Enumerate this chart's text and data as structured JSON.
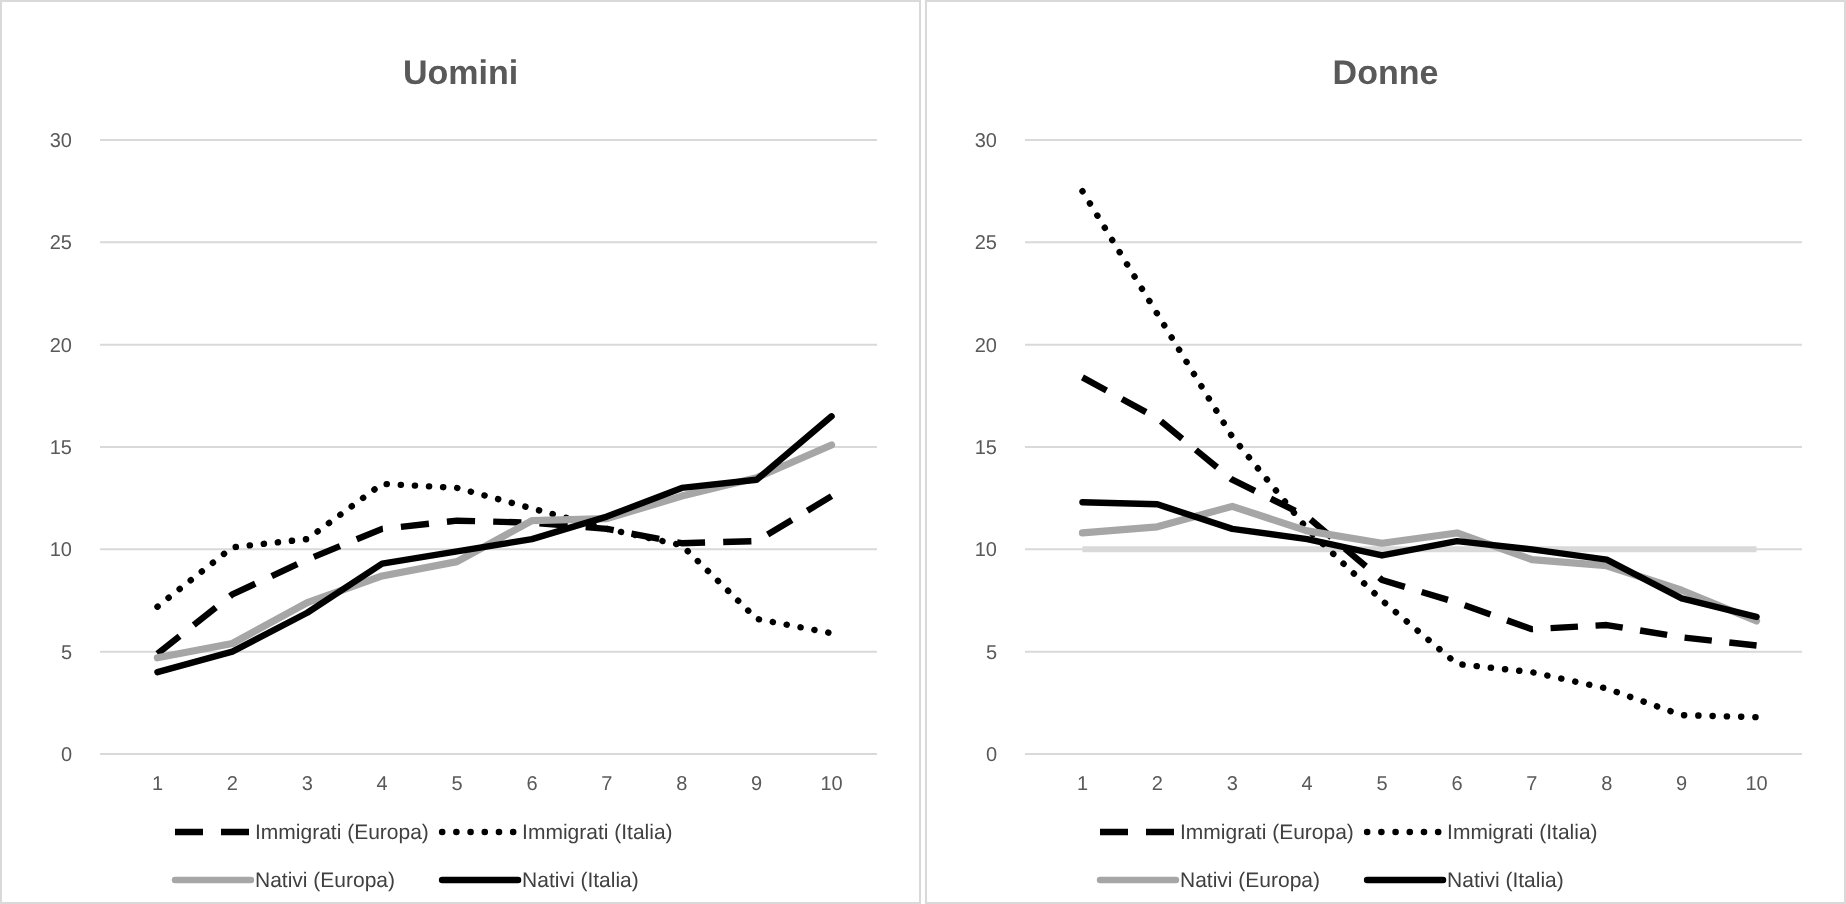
{
  "chart_data": [
    {
      "type": "line",
      "title": "Uomini",
      "categories": [
        "1",
        "2",
        "3",
        "4",
        "5",
        "6",
        "7",
        "8",
        "9",
        "10"
      ],
      "ylim": [
        0,
        30
      ],
      "yticks": [
        0,
        5,
        10,
        15,
        20,
        25,
        30
      ],
      "grid": "y",
      "legend": "bottom",
      "marker": "none",
      "series": [
        {
          "name": "Immigrati (Europa)",
          "color": "#000000",
          "line_style": "dashed",
          "values": [
            4.9,
            7.8,
            9.5,
            11,
            11.4,
            11.3,
            11,
            10.3,
            10.4,
            12.6
          ]
        },
        {
          "name": "Immigrati (Italia)",
          "color": "#000000",
          "line_style": "dotted",
          "values": [
            7.2,
            10.1,
            10.5,
            13.2,
            13,
            12,
            11,
            10.2,
            6.6,
            5.9
          ]
        },
        {
          "name": "Nativi (Europa)",
          "color": "#a6a6a6",
          "line_style": "solid",
          "values": [
            4.7,
            5.4,
            7.4,
            8.7,
            9.4,
            11.4,
            11.5,
            12.6,
            13.5,
            15.1
          ]
        },
        {
          "name": "Nativi (Italia)",
          "color": "#000000",
          "line_style": "solid",
          "values": [
            4,
            5,
            6.9,
            9.3,
            9.9,
            10.5,
            11.6,
            13,
            13.4,
            16.5
          ]
        }
      ]
    },
    {
      "type": "line",
      "title": "Donne",
      "categories": [
        "1",
        "2",
        "3",
        "4",
        "5",
        "6",
        "7",
        "8",
        "9",
        "10"
      ],
      "ylim": [
        0,
        30
      ],
      "yticks": [
        0,
        5,
        10,
        15,
        20,
        25,
        30
      ],
      "grid": "y",
      "legend": "bottom",
      "marker": "none",
      "ref_lines": [
        {
          "axis": "y",
          "value": 10,
          "color": "#d9d9d9"
        }
      ],
      "series": [
        {
          "name": "Immigrati (Europa)",
          "color": "#000000",
          "line_style": "dashed",
          "values": [
            18.4,
            16.4,
            13.4,
            11.6,
            8.5,
            7.4,
            6.1,
            6.3,
            5.7,
            5.3
          ]
        },
        {
          "name": "Immigrati (Italia)",
          "color": "#000000",
          "line_style": "dotted",
          "values": [
            27.5,
            21.5,
            15.5,
            11,
            7.5,
            4.4,
            4,
            3.2,
            1.9,
            1.8
          ]
        },
        {
          "name": "Nativi (Europa)",
          "color": "#a6a6a6",
          "line_style": "solid",
          "values": [
            10.8,
            11.1,
            12.1,
            10.9,
            10.3,
            10.8,
            9.5,
            9.2,
            8,
            6.5
          ]
        },
        {
          "name": "Nativi (Italia)",
          "color": "#000000",
          "line_style": "solid",
          "values": [
            12.3,
            12.2,
            11,
            10.5,
            9.7,
            10.4,
            10,
            9.5,
            7.6,
            6.7
          ]
        }
      ]
    }
  ]
}
